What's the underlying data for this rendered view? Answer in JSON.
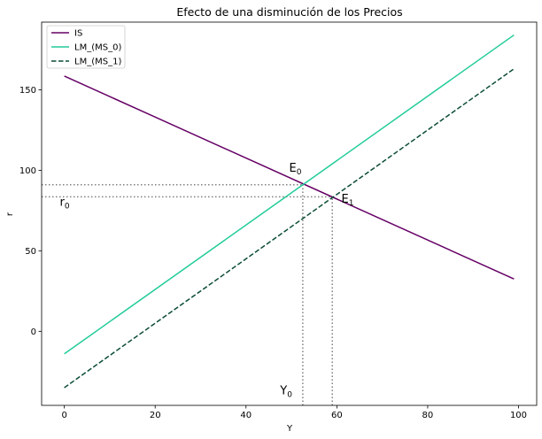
{
  "chart_data": {
    "type": "line",
    "title": "Efecto de una disminución de los Precios",
    "xlabel": "Y",
    "ylabel": "r",
    "xlim": [
      -5,
      104
    ],
    "ylim": [
      -46,
      192
    ],
    "xticks": [
      0,
      20,
      40,
      60,
      80,
      100
    ],
    "yticks": [
      0,
      50,
      100,
      150
    ],
    "grid": false,
    "legend_position": "top-left",
    "series": [
      {
        "name": "IS",
        "color": "#660066",
        "dash": "solid",
        "x": [
          0,
          99
        ],
        "y": [
          158.5,
          32.5
        ]
      },
      {
        "name": "LM_(MS_0)",
        "color": "#22cc99",
        "dash": "solid",
        "x": [
          0,
          99
        ],
        "y": [
          -14,
          184
        ]
      },
      {
        "name": "LM_(MS_1)",
        "color": "#0b4d33",
        "dash": "dashed",
        "x": [
          0,
          99
        ],
        "y": [
          -35,
          163
        ]
      }
    ],
    "reference_lines": [
      {
        "kind": "horizontal",
        "y": 91,
        "x_from": -5,
        "x_to": 52.5
      },
      {
        "kind": "horizontal",
        "y": 83.5,
        "x_from": -5,
        "x_to": 59
      },
      {
        "kind": "vertical",
        "x": 52.5,
        "y_from": -46,
        "y_to": 91
      },
      {
        "kind": "vertical",
        "x": 59,
        "y_from": -46,
        "y_to": 83.5
      }
    ],
    "annotations": [
      {
        "base": "E",
        "sub": "0",
        "x": 49.5,
        "y": 99
      },
      {
        "base": "E",
        "sub": "1",
        "x": 61,
        "y": 80
      },
      {
        "base": "r",
        "sub": "0",
        "x": -1,
        "y": 78
      },
      {
        "base": "Y",
        "sub": "0",
        "x": 47.5,
        "y": -39
      }
    ]
  }
}
